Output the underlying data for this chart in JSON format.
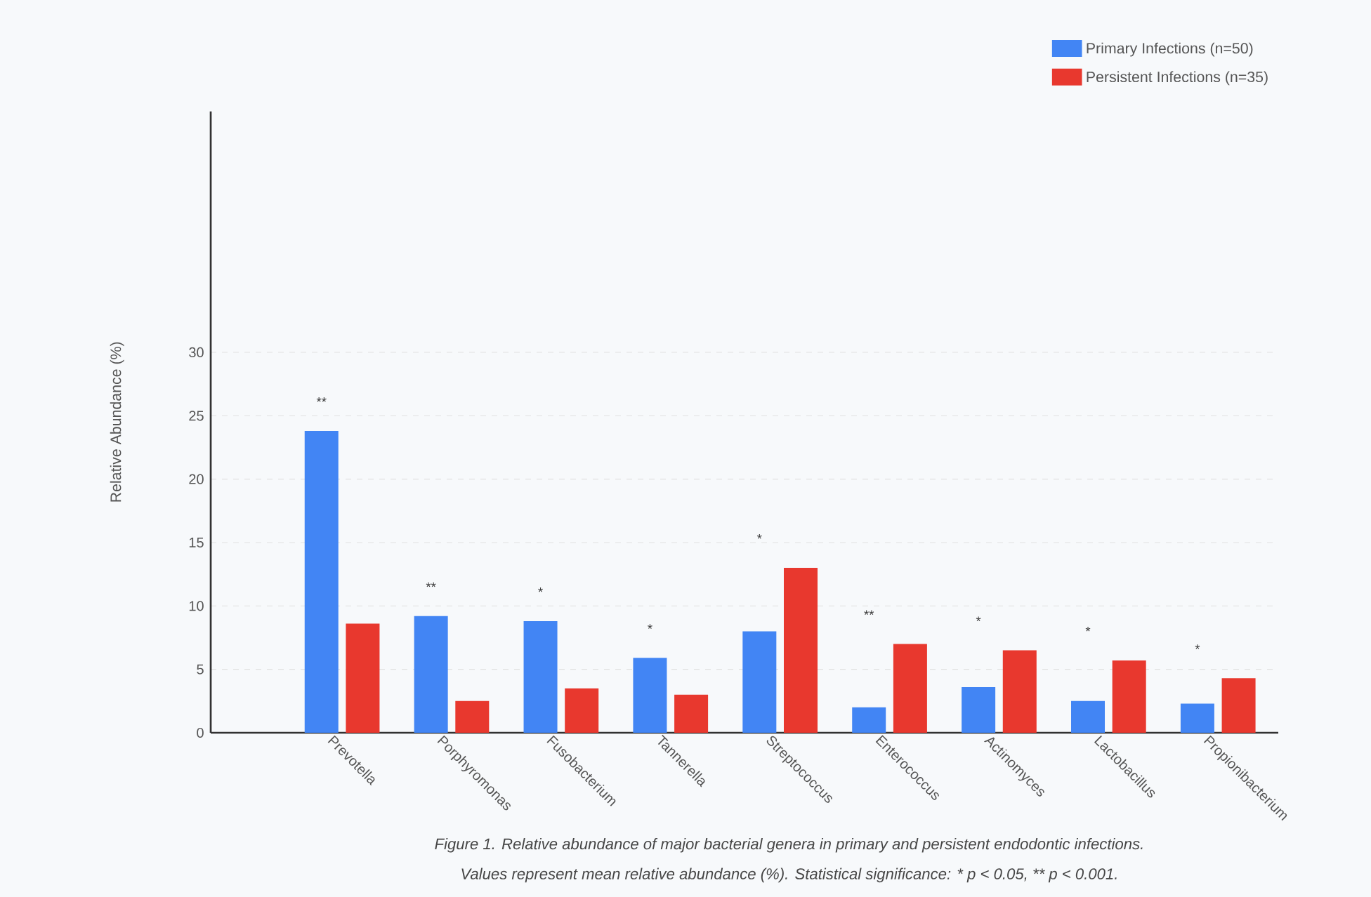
{
  "chart_data": {
    "type": "bar",
    "ylabel": "Relative Abundance (%)",
    "categories": [
      "Prevotella",
      "Porphyromonas",
      "Fusobacterium",
      "Tannerella",
      "Streptococcus",
      "Enterococcus",
      "Actinomyces",
      "Lactobacillus",
      "Propionibacterium"
    ],
    "series": [
      {
        "name": "Primary Infections (n=50)",
        "color": "#4285f4",
        "values": [
          23.8,
          9.2,
          8.8,
          5.9,
          8.0,
          2.0,
          3.6,
          2.5,
          2.3
        ]
      },
      {
        "name": "Persistent Infections (n=35)",
        "color": "#e8382e",
        "values": [
          8.6,
          2.5,
          3.5,
          3.0,
          13.0,
          7.0,
          6.5,
          5.7,
          4.3
        ]
      }
    ],
    "ylim": [
      0,
      49
    ],
    "yticks": [
      0,
      5,
      10,
      15,
      20,
      25,
      30
    ],
    "grid": "y",
    "legend": "top right",
    "annotations": [
      "**",
      "**",
      "*",
      "*",
      "*",
      "**",
      "*",
      "*",
      "*",
      "Figure 1. Relative abundance of major bacterial genera in primary and persistent endodontic infections.",
      "Values represent mean relative abundance (%). Statistical significance: * p < 0.05, ** p < 0.001."
    ]
  }
}
